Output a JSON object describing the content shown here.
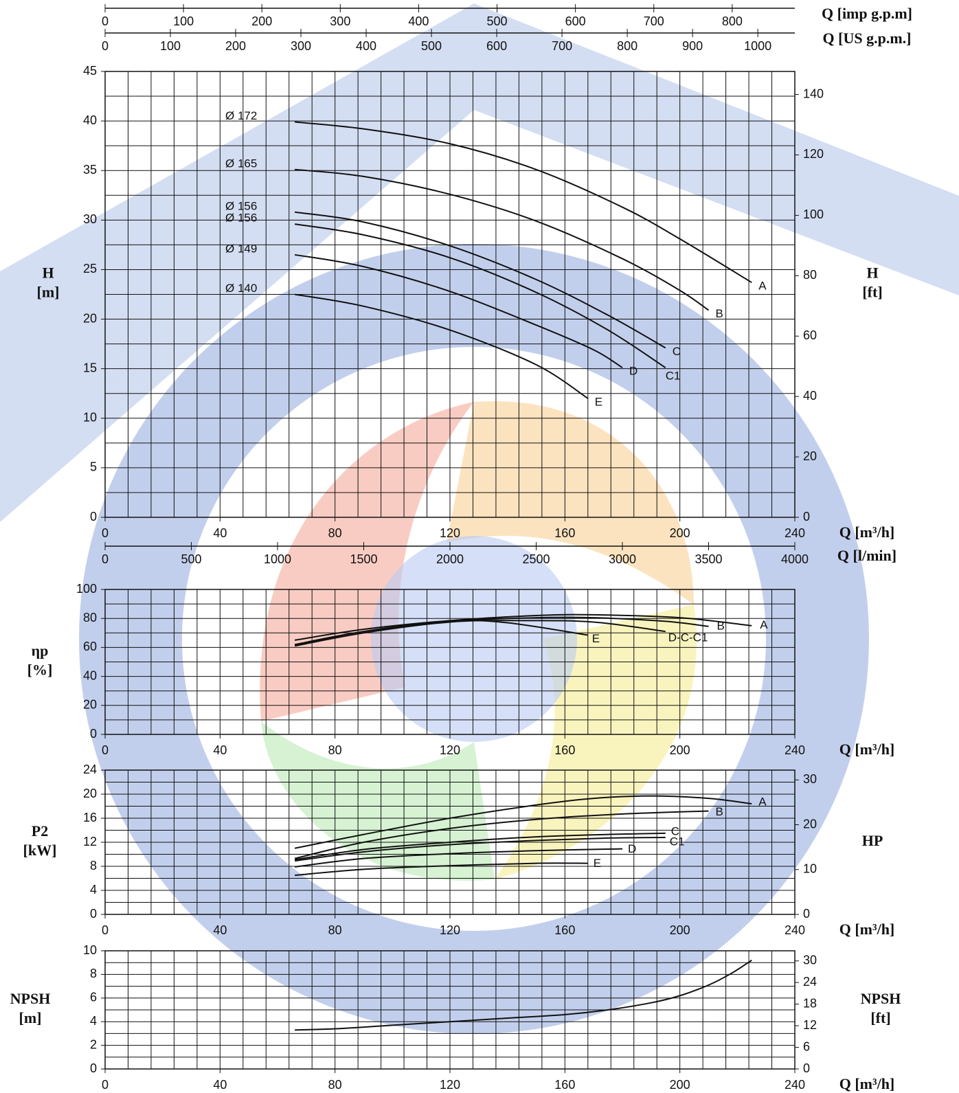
{
  "colors": {
    "wm_blue": "#c5d3ee",
    "wm_blue_dark": "#aebfe6",
    "wm_red": "#f6b6a9",
    "wm_orange": "#fbd7a4",
    "wm_yellow": "#f6f0a3",
    "wm_green": "#c5edc1",
    "wm_center": "#b9c9f2",
    "grid": "#111111",
    "curve": "#111111"
  },
  "chart_data": [
    {
      "id": "head",
      "type": "line",
      "xlabel": "Q [m³/h]",
      "xlim": [
        0,
        240
      ],
      "x_ticks": [
        0,
        40,
        80,
        120,
        160,
        200,
        240
      ],
      "ylabel": [
        "H",
        "[m]"
      ],
      "ylim": [
        0,
        45
      ],
      "y_ticks": [
        0,
        5,
        10,
        15,
        20,
        25,
        30,
        35,
        40,
        45
      ],
      "ylabel_right": [
        "H",
        "[ft]"
      ],
      "y_right_ticks": [
        0,
        20,
        40,
        60,
        80,
        100,
        120,
        140
      ],
      "y_right_factor": 3.2808,
      "secondary_x_axes": [
        {
          "label": "Q [imp g.p.m]",
          "ticks": [
            0,
            100,
            200,
            300,
            400,
            500,
            600,
            700,
            800
          ],
          "factor": 3.6661
        },
        {
          "label": "Q [US g.p.m.]",
          "ticks": [
            0,
            100,
            200,
            300,
            400,
            500,
            600,
            700,
            800,
            900,
            1000
          ],
          "factor": 4.4029
        },
        {
          "label": "Q [l/min]",
          "ticks": [
            0,
            500,
            1000,
            1500,
            2000,
            2500,
            3000,
            3500,
            4000
          ],
          "factor": 16.6667
        }
      ],
      "series": [
        {
          "name": "A",
          "impeller": "Ø 172",
          "points": [
            [
              66,
              39.9
            ],
            [
              90,
              39.2
            ],
            [
              120,
              37.7
            ],
            [
              150,
              35.1
            ],
            [
              180,
              31.3
            ],
            [
              200,
              28.1
            ],
            [
              225,
              23.7
            ]
          ]
        },
        {
          "name": "B",
          "impeller": "Ø 165",
          "points": [
            [
              66,
              35.1
            ],
            [
              90,
              34.4
            ],
            [
              120,
              32.6
            ],
            [
              150,
              29.9
            ],
            [
              180,
              26.1
            ],
            [
              200,
              22.9
            ],
            [
              210,
              20.9
            ]
          ]
        },
        {
          "name": "C",
          "impeller": "Ø 156",
          "points": [
            [
              66,
              30.8
            ],
            [
              90,
              29.8
            ],
            [
              120,
              27.4
            ],
            [
              150,
              24.0
            ],
            [
              175,
              20.4
            ],
            [
              195,
              17.1
            ]
          ]
        },
        {
          "name": "C1",
          "impeller": "Ø 156",
          "points": [
            [
              66,
              29.6
            ],
            [
              90,
              28.5
            ],
            [
              120,
              26.2
            ],
            [
              150,
              22.7
            ],
            [
              175,
              18.9
            ],
            [
              195,
              15.1
            ]
          ]
        },
        {
          "name": "D",
          "impeller": "Ø 149",
          "points": [
            [
              66,
              26.5
            ],
            [
              90,
              25.3
            ],
            [
              120,
              22.8
            ],
            [
              150,
              19.4
            ],
            [
              170,
              16.9
            ],
            [
              180,
              15.1
            ]
          ]
        },
        {
          "name": "E",
          "impeller": "Ø 140",
          "points": [
            [
              66,
              22.5
            ],
            [
              90,
              21.3
            ],
            [
              120,
              18.9
            ],
            [
              150,
              15.4
            ],
            [
              168,
              12.0
            ]
          ]
        }
      ]
    },
    {
      "id": "efficiency",
      "type": "line",
      "xlabel": "Q [m³/h]",
      "xlim": [
        0,
        240
      ],
      "x_ticks": [
        0,
        40,
        80,
        120,
        160,
        200,
        240
      ],
      "ylabel": [
        "ηp",
        "[%]"
      ],
      "ylim": [
        0,
        100
      ],
      "y_ticks": [
        0,
        20,
        40,
        60,
        80,
        100
      ],
      "series": [
        {
          "name": "A",
          "points": [
            [
              66,
              65
            ],
            [
              90,
              72.5
            ],
            [
              120,
              78.5
            ],
            [
              150,
              82
            ],
            [
              170,
              82.5
            ],
            [
              200,
              80.5
            ],
            [
              225,
              75
            ]
          ]
        },
        {
          "name": "B",
          "points": [
            [
              66,
              62
            ],
            [
              90,
              71
            ],
            [
              120,
              78
            ],
            [
              150,
              80.5
            ],
            [
              170,
              80.5
            ],
            [
              195,
              78
            ],
            [
              210,
              74.5
            ]
          ]
        },
        {
          "name": "D-C-C1",
          "points": [
            [
              66,
              61
            ],
            [
              90,
              70
            ],
            [
              120,
              77.5
            ],
            [
              145,
              78.5
            ],
            [
              170,
              77.5
            ],
            [
              195,
              71
            ]
          ]
        },
        {
          "name": "E",
          "points": [
            [
              66,
              61.5
            ],
            [
              90,
              71
            ],
            [
              120,
              78
            ],
            [
              140,
              77
            ],
            [
              168,
              68.5
            ]
          ]
        }
      ]
    },
    {
      "id": "power",
      "type": "line",
      "xlabel": "Q [m³/h]",
      "xlim": [
        0,
        240
      ],
      "x_ticks": [
        0,
        40,
        80,
        120,
        160,
        200,
        240
      ],
      "ylabel": [
        "P2",
        "[kW]"
      ],
      "ylim": [
        0,
        24
      ],
      "y_ticks": [
        0,
        4,
        8,
        12,
        16,
        20,
        24
      ],
      "ylabel_right": [
        "HP"
      ],
      "y_right_ticks": [
        0,
        10,
        20,
        30
      ],
      "y_right_factor": 1.341,
      "series": [
        {
          "name": "A",
          "points": [
            [
              66,
              11.0
            ],
            [
              90,
              13.3
            ],
            [
              120,
              16.0
            ],
            [
              150,
              18.2
            ],
            [
              170,
              19.3
            ],
            [
              190,
              19.7
            ],
            [
              210,
              19.3
            ],
            [
              225,
              18.4
            ]
          ]
        },
        {
          "name": "B",
          "points": [
            [
              66,
              9.3
            ],
            [
              90,
              12.0
            ],
            [
              120,
              14.3
            ],
            [
              150,
              15.8
            ],
            [
              180,
              16.7
            ],
            [
              210,
              17.2
            ]
          ]
        },
        {
          "name": "C",
          "points": [
            [
              66,
              9.1
            ],
            [
              90,
              10.8
            ],
            [
              120,
              12.0
            ],
            [
              150,
              12.9
            ],
            [
              175,
              13.3
            ],
            [
              195,
              13.5
            ]
          ]
        },
        {
          "name": "C1",
          "points": [
            [
              66,
              8.9
            ],
            [
              90,
              10.4
            ],
            [
              120,
              11.6
            ],
            [
              150,
              12.3
            ],
            [
              175,
              12.7
            ],
            [
              195,
              12.8
            ]
          ]
        },
        {
          "name": "D",
          "points": [
            [
              66,
              7.9
            ],
            [
              90,
              9.3
            ],
            [
              120,
              10.1
            ],
            [
              150,
              10.6
            ],
            [
              180,
              10.9
            ]
          ]
        },
        {
          "name": "E",
          "points": [
            [
              66,
              6.5
            ],
            [
              90,
              7.5
            ],
            [
              120,
              8.1
            ],
            [
              150,
              8.5
            ],
            [
              168,
              8.5
            ]
          ]
        }
      ]
    },
    {
      "id": "npsh",
      "type": "line",
      "xlabel": "Q [m³/h]",
      "xlim": [
        0,
        240
      ],
      "x_ticks": [
        0,
        40,
        80,
        120,
        160,
        200,
        240
      ],
      "ylabel": [
        "NPSH",
        "[m]"
      ],
      "ylim": [
        0,
        10
      ],
      "y_ticks": [
        0,
        2,
        4,
        6,
        8,
        10
      ],
      "ylabel_right": [
        "NPSH",
        "[ft]"
      ],
      "y_right_ticks": [
        0,
        6,
        12,
        18,
        24,
        30
      ],
      "y_right_factor": 3.2808,
      "series": [
        {
          "points": [
            [
              66,
              3.3
            ],
            [
              80,
              3.4
            ],
            [
              100,
              3.7
            ],
            [
              120,
              4.0
            ],
            [
              140,
              4.3
            ],
            [
              160,
              4.6
            ],
            [
              175,
              5.0
            ],
            [
              190,
              5.6
            ],
            [
              200,
              6.2
            ],
            [
              210,
              7.1
            ],
            [
              218,
              8.1
            ],
            [
              225,
              9.2
            ]
          ]
        }
      ]
    }
  ]
}
